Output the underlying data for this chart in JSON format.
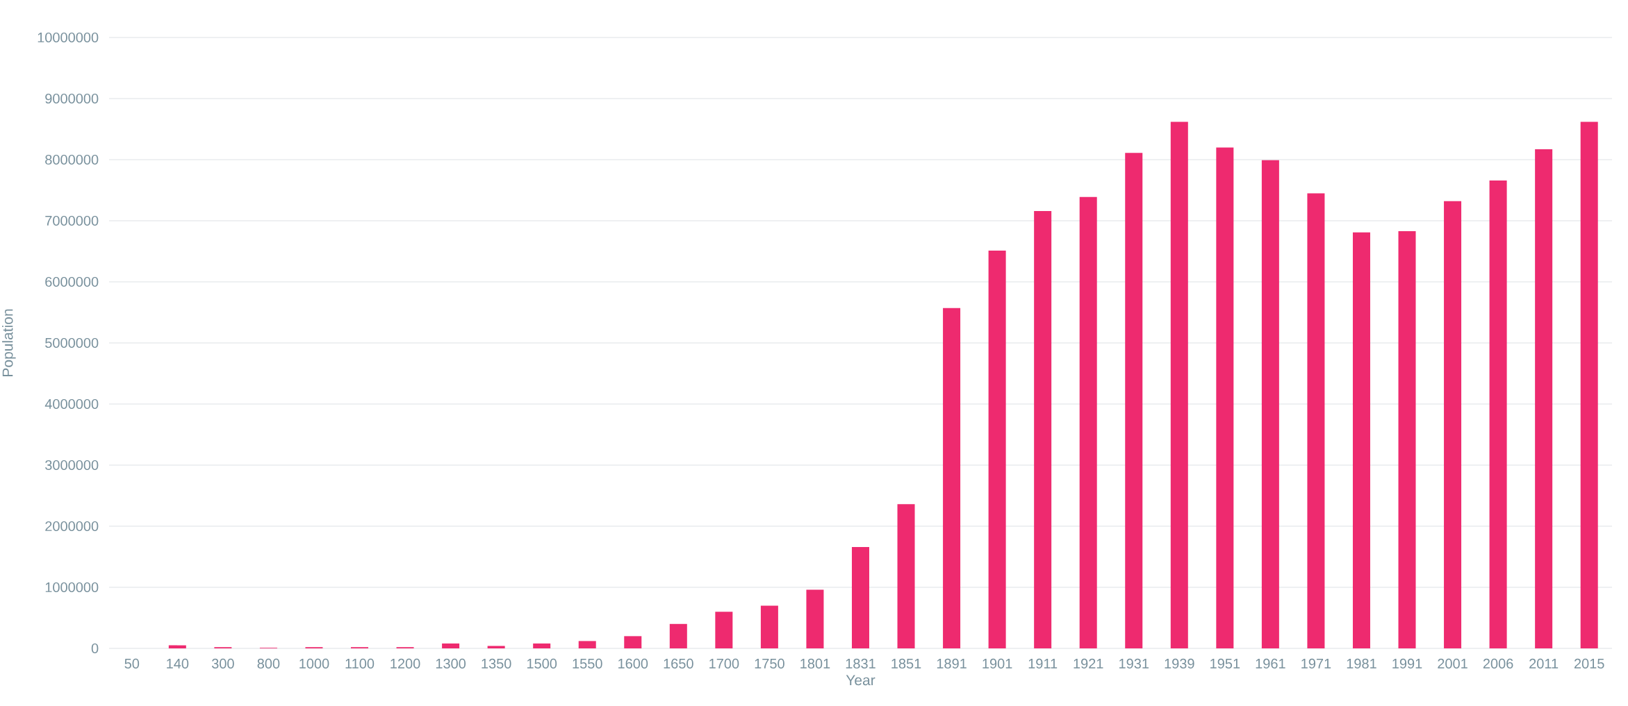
{
  "chart_data": {
    "type": "bar",
    "xlabel": "Year",
    "ylabel": "Population",
    "categories": [
      "50",
      "140",
      "300",
      "800",
      "1000",
      "1100",
      "1200",
      "1300",
      "1350",
      "1500",
      "1550",
      "1600",
      "1650",
      "1700",
      "1750",
      "1801",
      "1831",
      "1851",
      "1891",
      "1901",
      "1911",
      "1921",
      "1931",
      "1939",
      "1951",
      "1961",
      "1971",
      "1981",
      "1991",
      "2001",
      "2006",
      "2011",
      "2015"
    ],
    "values": [
      null,
      50000,
      20000,
      10000,
      20000,
      20000,
      20000,
      80000,
      40000,
      80000,
      120000,
      200000,
      400000,
      600000,
      700000,
      960000,
      1660000,
      2360000,
      5570000,
      6510000,
      7160000,
      7390000,
      8110000,
      8620000,
      8200000,
      7990000,
      7450000,
      6810000,
      6830000,
      7320000,
      7660000,
      8170000,
      8620000
    ],
    "color": "#ee2a6f",
    "ylim": [
      0,
      10000000
    ],
    "yticks": [
      0,
      1000000,
      2000000,
      3000000,
      4000000,
      5000000,
      6000000,
      7000000,
      8000000,
      9000000,
      10000000
    ],
    "grid": "y"
  }
}
